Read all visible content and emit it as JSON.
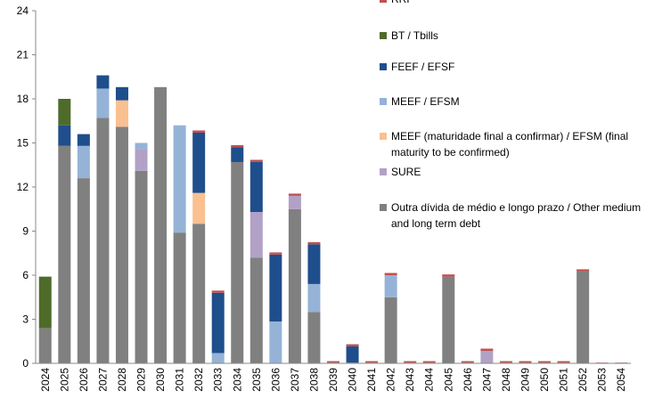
{
  "chart_data": {
    "type": "stacked_bar",
    "categories": [
      "2024",
      "2025",
      "2026",
      "2027",
      "2028",
      "2029",
      "2030",
      "2031",
      "2032",
      "2033",
      "2034",
      "2035",
      "2036",
      "2037",
      "2038",
      "2039",
      "2040",
      "2041",
      "2042",
      "2043",
      "2044",
      "2045",
      "2046",
      "2047",
      "2048",
      "2049",
      "2050",
      "2051",
      "2052",
      "2053",
      "2054"
    ],
    "series": [
      {
        "name": "Outra dívida de médio e longo prazo / Other medium and long term debt",
        "color": "#808080",
        "values": [
          2.4,
          14.8,
          12.6,
          16.7,
          16.1,
          13.1,
          18.8,
          8.9,
          9.5,
          0.05,
          13.7,
          7.2,
          0,
          10.5,
          3.5,
          0.05,
          0.05,
          0.05,
          4.5,
          0.05,
          0.05,
          5.9,
          0.05,
          0,
          0.05,
          0.05,
          0.05,
          0.05,
          6.25,
          0,
          0
        ]
      },
      {
        "name": "SURE",
        "color": "#b2a1c7",
        "values": [
          0,
          0,
          0,
          0,
          0,
          1.5,
          0,
          0,
          0,
          0,
          0,
          3.1,
          0,
          0.9,
          0,
          0,
          0,
          0,
          0,
          0,
          0,
          0,
          0,
          0.85,
          0,
          0,
          0,
          0,
          0,
          0,
          0
        ]
      },
      {
        "name": "MEEF (maturidade final a confirmar) / EFSM (final maturity to be confirmed)",
        "color": "#fac090",
        "values": [
          0,
          0,
          0,
          0,
          1.8,
          0,
          0,
          0,
          2.1,
          0,
          0,
          0,
          0,
          0,
          0,
          0,
          0,
          0,
          0,
          0,
          0,
          0,
          0,
          0,
          0,
          0,
          0,
          0,
          0,
          0,
          0
        ]
      },
      {
        "name": "MEEF / EFSM",
        "color": "#95b3d7",
        "values": [
          0,
          0,
          2.2,
          2.0,
          0,
          0.4,
          0,
          7.3,
          0,
          0.65,
          0,
          0,
          2.85,
          0,
          1.9,
          0,
          0,
          0,
          1.5,
          0,
          0,
          0,
          0,
          0,
          0,
          0,
          0,
          0,
          0,
          0,
          0
        ]
      },
      {
        "name": "FEEF / EFSF",
        "color": "#1f4e8c",
        "values": [
          0,
          1.4,
          0.8,
          0.9,
          0.9,
          0,
          0,
          0,
          4.1,
          4.1,
          1.0,
          3.4,
          4.55,
          0,
          2.7,
          0,
          1.1,
          0,
          0,
          0,
          0,
          0,
          0,
          0,
          0,
          0,
          0,
          0,
          0,
          0,
          0
        ]
      },
      {
        "name": "BT / Tbills",
        "color": "#4f6b2a",
        "values": [
          3.5,
          1.8,
          0,
          0,
          0,
          0,
          0,
          0,
          0,
          0,
          0,
          0,
          0,
          0,
          0,
          0,
          0,
          0,
          0,
          0,
          0,
          0,
          0,
          0,
          0,
          0,
          0,
          0,
          0,
          0,
          0
        ]
      },
      {
        "name": "RRF",
        "color": "#c0504d",
        "values": [
          0,
          0,
          0,
          0,
          0,
          0,
          0,
          0,
          0.15,
          0.15,
          0.15,
          0.15,
          0.15,
          0.15,
          0.15,
          0.1,
          0.15,
          0.1,
          0.15,
          0.1,
          0.1,
          0.15,
          0.1,
          0.15,
          0.1,
          0.1,
          0.1,
          0.1,
          0.15,
          0.05,
          0.05
        ]
      }
    ],
    "ylim": [
      0,
      24
    ],
    "yticks": [
      0,
      3,
      6,
      9,
      12,
      15,
      18,
      21,
      24
    ]
  }
}
